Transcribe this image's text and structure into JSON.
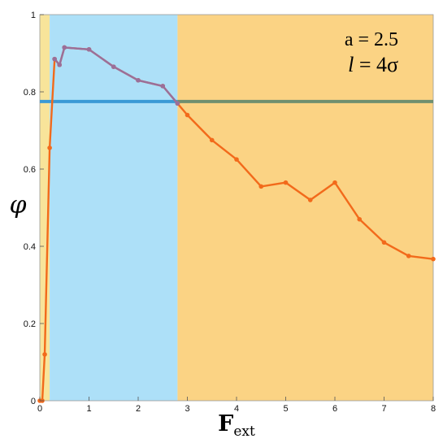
{
  "chart_data": {
    "type": "line",
    "xlabel_main": "F",
    "xlabel_sub": "ext",
    "ylabel": "φ",
    "xlim": [
      0,
      8
    ],
    "ylim": [
      0,
      1
    ],
    "xticks": [
      "0",
      "1",
      "2",
      "3",
      "4",
      "5",
      "6",
      "7",
      "8"
    ],
    "yticks": [
      "0",
      "0.2",
      "0.4",
      "0.6",
      "0.8",
      "1"
    ],
    "annotations": {
      "line1": "a = 2.5",
      "line2_var": "l",
      "line2_rest": " = 4σ"
    },
    "bands": [
      {
        "from": 0,
        "to": 0.2,
        "color": "#f8e49a"
      },
      {
        "from": 0.2,
        "to": 2.8,
        "color": "#ade0f8"
      },
      {
        "from": 2.8,
        "to": 8,
        "color": "#fbd384"
      }
    ],
    "hline": {
      "y": 0.775,
      "color_left": "#3a9ad6",
      "color_right": "#6f8f6f"
    },
    "series": [
      {
        "color": "#f26a1b",
        "points": [
          [
            0,
            0
          ],
          [
            0.05,
            0
          ],
          [
            0.1,
            0.12
          ],
          [
            0.2,
            0.655
          ],
          [
            0.3,
            0.885
          ],
          [
            0.4,
            0.87
          ],
          [
            0.5,
            0.915
          ],
          [
            1.0,
            0.91
          ],
          [
            1.5,
            0.865
          ],
          [
            2.0,
            0.83
          ],
          [
            2.5,
            0.815
          ],
          [
            2.8,
            0.77
          ],
          [
            3.0,
            0.74
          ],
          [
            3.5,
            0.675
          ],
          [
            4.0,
            0.625
          ],
          [
            4.5,
            0.555
          ],
          [
            5.0,
            0.565
          ],
          [
            5.5,
            0.52
          ],
          [
            6.0,
            0.565
          ],
          [
            6.5,
            0.47
          ],
          [
            7.0,
            0.41
          ],
          [
            7.5,
            0.375
          ],
          [
            8.0,
            0.367
          ]
        ]
      },
      {
        "color": "#9a6f9a",
        "points": [
          [
            0.3,
            0.885
          ],
          [
            0.4,
            0.87
          ],
          [
            0.5,
            0.915
          ],
          [
            1.0,
            0.91
          ],
          [
            1.5,
            0.865
          ],
          [
            2.0,
            0.83
          ],
          [
            2.5,
            0.815
          ],
          [
            2.8,
            0.77
          ]
        ]
      }
    ]
  }
}
